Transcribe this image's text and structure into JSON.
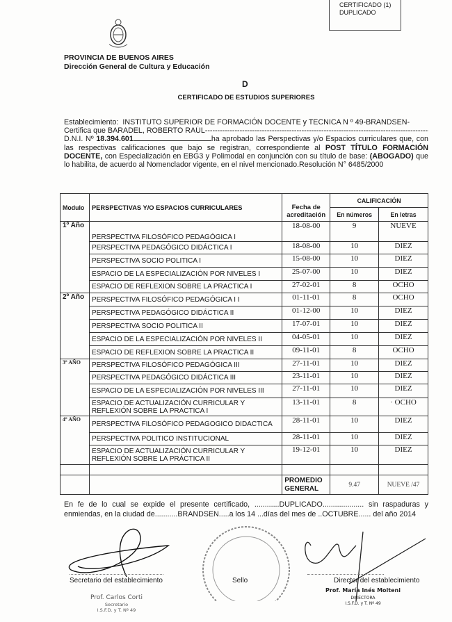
{
  "stamp": {
    "line1": "CERTIFICADO (1)",
    "line2": "DUPLICADO"
  },
  "header": {
    "province": "PROVINCIA DE BUENOS AIRES",
    "department": "Dirección General de Cultura y Educación",
    "letter": "D",
    "title": "CERTIFICADO DE ESTUDIOS SUPERIORES"
  },
  "body": {
    "establecimiento_label": "Establecimiento:",
    "establecimiento": "INSTITUTO SUPERIOR DE FORMACIÓN DOCENTE y TECNICA N º 49-BRANDSEN-",
    "certifica_label": "Certifica que",
    "nombre": "BARADEL, ROBERTO RAÚL",
    "dni_label": "D.N.I. Nº",
    "dni": "18.394.601",
    "text1": "ha aprobado las Perspectivas y/o Espacios curriculares que, con las respectivas calificaciones que bajo se registran, correspondiente al",
    "titulo": "POST TÍTULO FORMACIÓN DOCENTE,",
    "text2": "con Especialización en EBG3 y Polimodal en conjunción con su título de base:",
    "base": "(ABOGADO)",
    "text3": "que lo habilita, de acuerdo al Nomenclador vigente, en el nivel mencionado.Resolución N° 6485/2000"
  },
  "table": {
    "headers": {
      "modulo": "Modulo",
      "espacios": "PERSPECTIVAS Y/O ESPACIOS CURRICULARES",
      "fecha": "Fecha de acreditación",
      "calificacion": "CALIFICACIÓN",
      "numeros": "En números",
      "letras": "En letras"
    },
    "rows": [
      {
        "modulo": "1º Año",
        "espacio": "PERSPECTIVA FILOSÓFICO PEDAGÓGICA I",
        "fecha": "18-08-00",
        "numero": "9",
        "letras": "NUEVE"
      },
      {
        "modulo": "",
        "espacio": "PERSPECTIVA PEDAGÓGICO DIDÁCTICA I",
        "fecha": "18-08-00",
        "numero": "10",
        "letras": "DIEZ"
      },
      {
        "modulo": "",
        "espacio": "PERSPECTIVA SOCIO POLITICA I",
        "fecha": "15-08-00",
        "numero": "10",
        "letras": "DIEZ"
      },
      {
        "modulo": "",
        "espacio": "ESPACIO DE LA ESPECIALIZACIÓN POR NIVELES I",
        "fecha": "25-07-00",
        "numero": "10",
        "letras": "DIEZ"
      },
      {
        "modulo": "",
        "espacio": "ESPACIO DE REFLEXION SOBRE LA PRACTICA I",
        "fecha": "27-02-01",
        "numero": "8",
        "letras": "OCHO"
      },
      {
        "modulo": "2º Año",
        "espacio": "PERSPECTIVA FILOSÓFICO PEDAGÓGICA I I",
        "fecha": "01-11-01",
        "numero": "8",
        "letras": "OCHO"
      },
      {
        "modulo": "",
        "espacio": "PERSPECTIVA PEDAGÓGICO DIDÁCTICA II",
        "fecha": "01-12-00",
        "numero": "10",
        "letras": "DIEZ"
      },
      {
        "modulo": "",
        "espacio": "PERSPECTIVA SOCIO POLITICA II",
        "fecha": "17-07-01",
        "numero": "10",
        "letras": "DIEZ"
      },
      {
        "modulo": "",
        "espacio": "ESPACIO DE LA ESPECIALIZACIÓN POR NIVELES II",
        "fecha": "04-05-01",
        "numero": "10",
        "letras": "DIEZ"
      },
      {
        "modulo": "",
        "espacio": "ESPACIO DE REFLEXION SOBRE LA PRACTICA II",
        "fecha": "09-11-01",
        "numero": "8",
        "letras": "OCHO"
      },
      {
        "modulo": "3º AÑO",
        "espacio": "PERSPECTIVA FILOSÓFICO PEDAGÓGICA III",
        "fecha": "27-11-01",
        "numero": "10",
        "letras": "DIEZ"
      },
      {
        "modulo": "",
        "espacio": "PERSPECTIVA PEDAGÓGICO DIDÁCTICA III",
        "fecha": "23-11-01",
        "numero": "10",
        "letras": "DIEZ"
      },
      {
        "modulo": "",
        "espacio": "ESPACIO DE LA ESPECIALIZACIÓN POR NIVELES III",
        "fecha": "27-11-01",
        "numero": "10",
        "letras": "DIEZ"
      },
      {
        "modulo": "",
        "espacio": "ESPACIO DE ACTUALIZACIÓN CURRICULAR Y REFLEXIÓN SOBRE LA PRACTICA I",
        "fecha": "13-11-01",
        "numero": "8",
        "letras": "· OCHO"
      },
      {
        "modulo": "4º AÑO",
        "espacio": "PERSPECTIVA FILOSÓFICO PEDAGOGICO DIDACTICA",
        "fecha": "28-11-01",
        "numero": "10",
        "letras": "DIEZ"
      },
      {
        "modulo": "",
        "espacio": "PERSPECTIVA POLITICO INSTITUCIONAL",
        "fecha": "28-11-01",
        "numero": "10",
        "letras": "DIEZ"
      },
      {
        "modulo": "",
        "espacio": "ESPACIO DE ACTUALIZACIÓN CURRICULAR Y REFLEXIÓN SOBRE LA PRÁCTICA II",
        "fecha": "19-12-01",
        "numero": "10",
        "letras": "DIEZ"
      },
      {
        "modulo": "",
        "espacio": "",
        "fecha": "",
        "numero": "",
        "letras": ""
      }
    ],
    "promedio": {
      "label": "PROMEDIO GENERAL",
      "numero": "9.47",
      "letras": "NUEVE /47"
    }
  },
  "closing": {
    "text": "En fe de lo cual se expide el presente certificado, ............DUPLICADO.................... sin raspaduras y enmiendas, en la ciudad de...........BRANDSEN.....a los 14 ...días del mes de ..OCTUBRE...... del año 2014"
  },
  "signatures": {
    "secretario_label": "Secretario del establecimiento",
    "secretario_name": "Prof. Carlos Corti",
    "secretario_title": "Secretario",
    "secretario_inst": "I.S.F.D. y T. Nº 49",
    "sello_label": "Sello",
    "seal_text": "DIRECCIÓN GENERAL DE CULTURA Y EDUCACIÓN",
    "director_label": "Director del establecimiento",
    "director_name": "Prof. María Inés Molteni",
    "director_title": "DIRECTORA",
    "director_inst": "I.S.F.D. y T. Nº 49"
  }
}
